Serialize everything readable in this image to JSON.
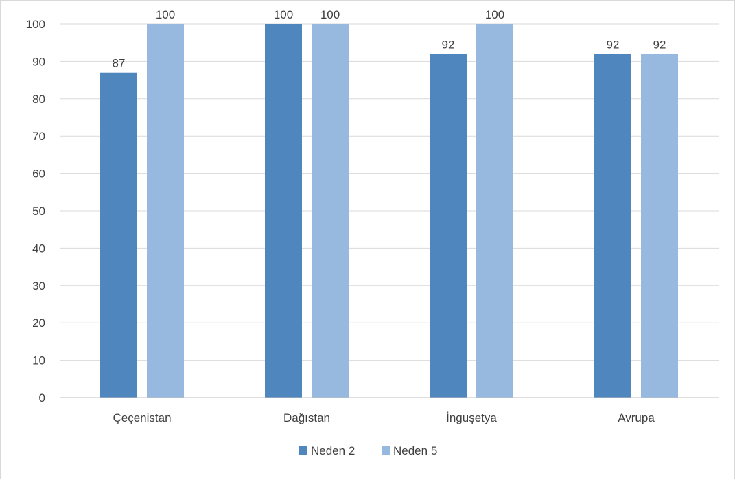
{
  "chart_data": {
    "type": "bar",
    "title": "",
    "xlabel": "",
    "ylabel": "",
    "categories": [
      "Çeçenistan",
      "Dağıstan",
      "İnguşetya",
      "Avrupa"
    ],
    "series": [
      {
        "name": "Neden 2",
        "values": [
          87,
          100,
          92,
          92
        ],
        "color": "#4f86bd"
      },
      {
        "name": "Neden 5",
        "values": [
          100,
          100,
          100,
          92
        ],
        "color": "#97b9e0"
      }
    ],
    "ylim": [
      0,
      100
    ],
    "yticks": [
      0,
      10,
      20,
      30,
      40,
      50,
      60,
      70,
      80,
      90,
      100
    ],
    "grid": true,
    "data_labels": true,
    "legend_position": "bottom",
    "gridline_color": "#d9d9d9",
    "axis_line_color": "#bfbfbf"
  }
}
